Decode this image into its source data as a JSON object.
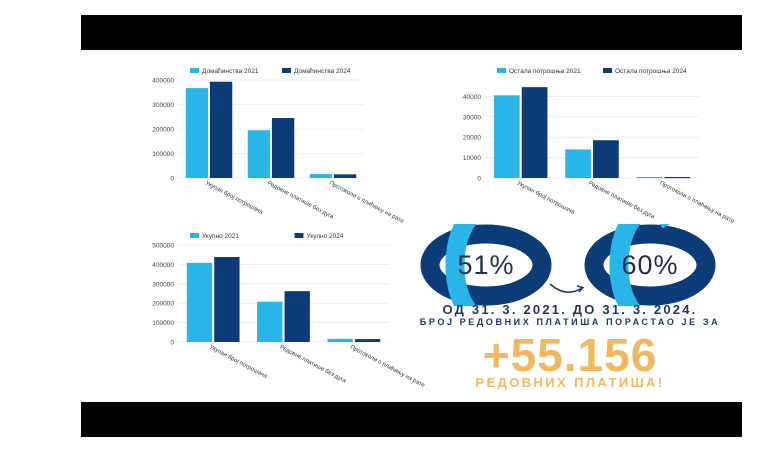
{
  "chart_data": [
    {
      "type": "bar",
      "categories": [
        "Укупан број потрошача",
        "Редовне платише без дуга",
        "Протоколи о плаћању на рате"
      ],
      "series": [
        {
          "name": "Домаћинства 2021",
          "values": [
            367000,
            195000,
            16000
          ]
        },
        {
          "name": "Домаћинства 2024",
          "values": [
            393000,
            245000,
            15000
          ]
        }
      ],
      "y_ticks": [
        "0",
        "100000",
        "200000",
        "300000",
        "400000"
      ],
      "ylim": [
        0,
        400000
      ],
      "colors": [
        "#29b5e8",
        "#0b3c78"
      ],
      "legend": "top"
    },
    {
      "type": "bar",
      "categories": [
        "Укупан број потрошача",
        "Редовне платише без дуга",
        "Протоколи о плаћању на рате"
      ],
      "series": [
        {
          "name": "Остала потрошња 2021",
          "values": [
            40500,
            14000,
            500
          ]
        },
        {
          "name": "Остала потрошња 2024",
          "values": [
            44500,
            18500,
            500
          ]
        }
      ],
      "y_ticks": [
        "0",
        "10000",
        "20000",
        "30000",
        "40000"
      ],
      "ylim": [
        0,
        48000
      ],
      "colors": [
        "#29b5e8",
        "#0b3c78"
      ],
      "legend": "top"
    },
    {
      "type": "bar",
      "categories": [
        "Укупан број потрошача",
        "Редовне платише без дуга",
        "Протоколи о плаћању на рате"
      ],
      "series": [
        {
          "name": "Укупно 2021",
          "values": [
            408000,
            208000,
            16000
          ]
        },
        {
          "name": "Укупно 2024",
          "values": [
            438000,
            262000,
            15000
          ]
        }
      ],
      "y_ticks": [
        "0",
        "100000",
        "200000",
        "300000",
        "400000",
        "500000"
      ],
      "ylim": [
        0,
        500000
      ],
      "colors": [
        "#29b5e8",
        "#0b3c78"
      ],
      "legend": "top"
    }
  ],
  "donuts": [
    {
      "label": "51%",
      "value": 51
    },
    {
      "label": "60%",
      "value": 60
    }
  ],
  "donut_colors": {
    "light": "#29b5e8",
    "dark": "#0b3c78"
  },
  "caption": {
    "line1": "ОД 31. 3. 2021. ДО 31. 3. 2024.",
    "line2": "БРОЈ РЕДОВНИХ ПЛАТИША ПОРАСТАО ЈЕ ЗА",
    "big_number": "+55.156",
    "big_caption": "РЕДОВНИХ ПЛАТИША!"
  }
}
